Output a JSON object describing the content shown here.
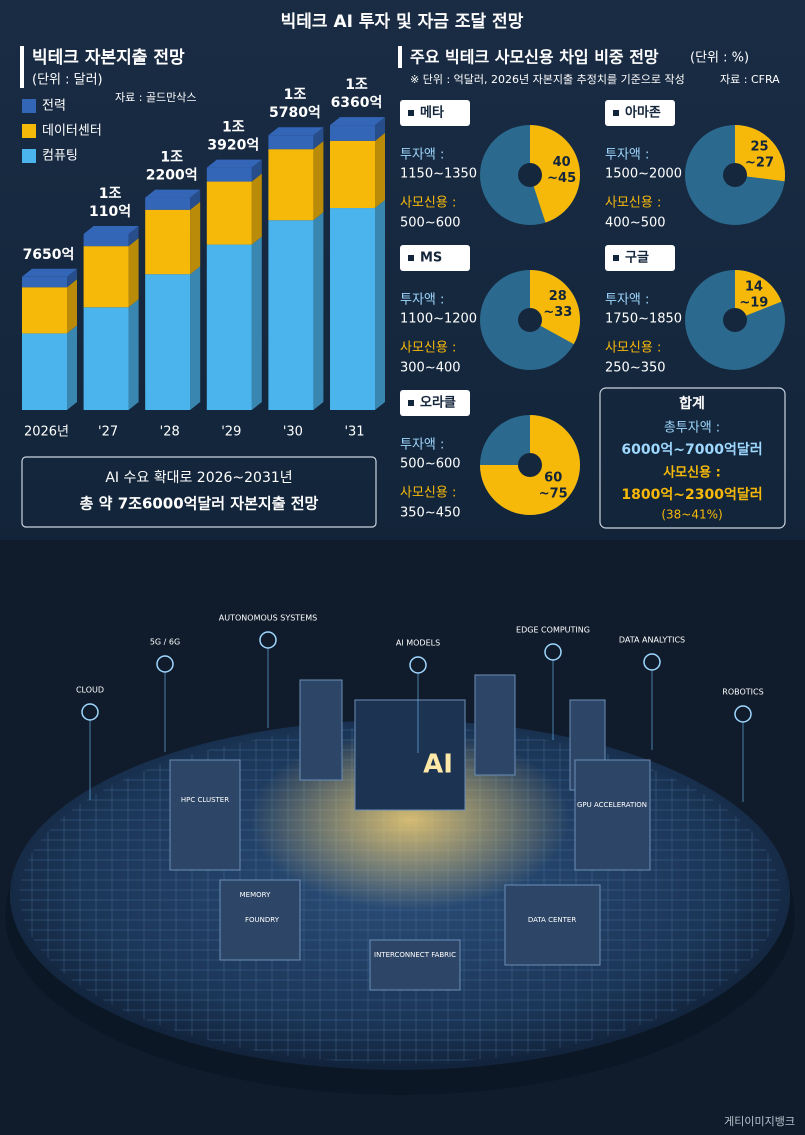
{
  "title": "빅테크 AI 투자 및 자금 조달 전망",
  "chart_data": [
    {
      "type": "bar",
      "stacked": true,
      "title": "빅테크 자본지출 전망",
      "unit": "(단위 : 달러)",
      "source": "자료 : 골드만삭스",
      "categories": [
        "2026년",
        "'27",
        "'28",
        "'29",
        "'30",
        "'31"
      ],
      "series": [
        {
          "name": "전력",
          "color": "#3466b8",
          "values": [
            600,
            700,
            700,
            800,
            800,
            900
          ]
        },
        {
          "name": "데이터센터",
          "color": "#f6b90a",
          "values": [
            2650,
            3510,
            3700,
            3620,
            4080,
            3860
          ]
        },
        {
          "name": "컴퓨팅",
          "color": "#4cb4ec",
          "values": [
            4400,
            5900,
            7800,
            9500,
            10900,
            11600
          ]
        }
      ],
      "totals": [
        7650,
        10110,
        12200,
        13920,
        15780,
        16360
      ],
      "total_labels": [
        [
          "7650억"
        ],
        [
          "1조",
          "110억"
        ],
        [
          "1조",
          "2200억"
        ],
        [
          "1조",
          "3920억"
        ],
        [
          "1조",
          "5780억"
        ],
        [
          "1조",
          "6360억"
        ]
      ],
      "ylim": [
        0,
        17000
      ],
      "note_lines": [
        "AI 수요 확대로 2026~2031년",
        "총 약 7조6000억달러 자본지출 전망"
      ]
    },
    {
      "type": "donut",
      "title": "주요 빅테크 사모신용 차입 비중 전망",
      "unit": "(단위 : %)",
      "note": "※ 단위 : 억달러, 2026년 자본지출 추정치를 기준으로 작성",
      "source": "자료 : CFRA",
      "invest_label": "투자액 :",
      "credit_label": "사모신용 :",
      "colors": {
        "share": "#f6b90a",
        "rest": "#2b6a8e"
      },
      "items": [
        {
          "name": "메타",
          "invest": "1150~1350",
          "credit": "500~600",
          "share_range": [
            40,
            45
          ],
          "share_lines": [
            "40",
            "~45"
          ]
        },
        {
          "name": "아마존",
          "invest": "1500~2000",
          "credit": "400~500",
          "share_range": [
            25,
            27
          ],
          "share_lines": [
            "25",
            "~27"
          ]
        },
        {
          "name": "MS",
          "invest": "1100~1200",
          "credit": "300~400",
          "share_range": [
            28,
            33
          ],
          "share_lines": [
            "28",
            "~33"
          ]
        },
        {
          "name": "구글",
          "invest": "1750~1850",
          "credit": "250~350",
          "share_range": [
            14,
            19
          ],
          "share_lines": [
            "14",
            "~19"
          ]
        },
        {
          "name": "오라클",
          "invest": "500~600",
          "credit": "350~450",
          "share_range": [
            60,
            75
          ],
          "share_lines": [
            "60",
            "~75"
          ]
        }
      ],
      "total": {
        "title": "합계",
        "invest_label": "총투자액 :",
        "invest": "6000억~7000억달러",
        "credit_label": "사모신용 :",
        "credit": "1800억~2300억달러",
        "share": "(38~41%)"
      }
    }
  ],
  "illustration": {
    "center": "AI",
    "labels": [
      "CLOUD",
      "5G / 6G",
      "AUTONOMOUS SYSTEMS",
      "AI MODELS",
      "EDGE COMPUTING",
      "DATA ANALYTICS",
      "ROBOTICS"
    ],
    "blocks": [
      "HPC CLUSTER",
      "GPU ACCELERATION",
      "MEMORY",
      "FOUNDRY",
      "INTERCONNECT FABRIC",
      "DATA CENTER"
    ],
    "credit": "게티이미지뱅크"
  }
}
